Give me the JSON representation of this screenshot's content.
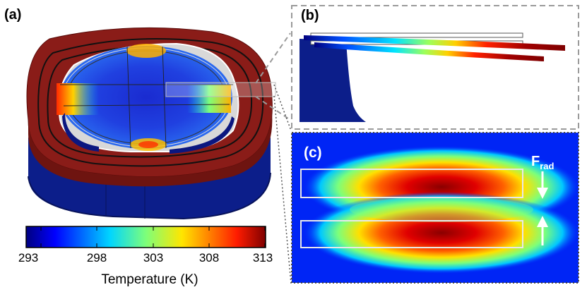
{
  "panels": {
    "a": "(a)",
    "b": "(b)",
    "c": "(c)"
  },
  "colorbar": {
    "ticks": [
      "293",
      "298",
      "303",
      "308",
      "313"
    ],
    "min": 293,
    "max": 313,
    "title": "Temperature (K)",
    "colormap": "jet"
  },
  "force": {
    "symbol": "F",
    "subscript": "rad"
  },
  "colors": {
    "ring_red": "#8a1c18",
    "base_blue": "#0c1e8a",
    "inset_border": "#9a9a9a"
  }
}
